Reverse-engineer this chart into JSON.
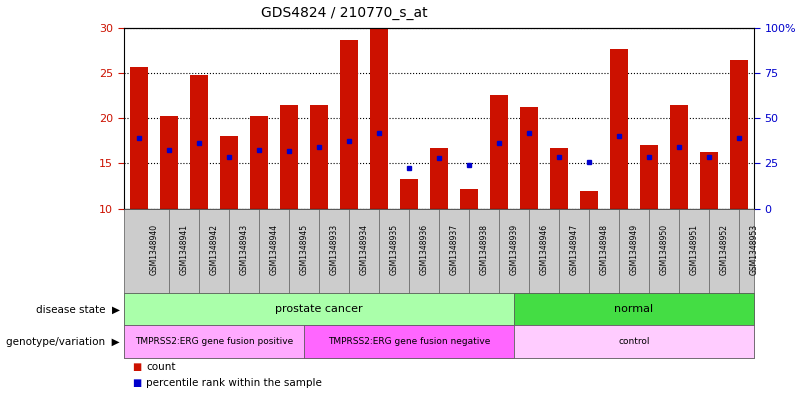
{
  "title": "GDS4824 / 210770_s_at",
  "samples": [
    "GSM1348940",
    "GSM1348941",
    "GSM1348942",
    "GSM1348943",
    "GSM1348944",
    "GSM1348945",
    "GSM1348933",
    "GSM1348934",
    "GSM1348935",
    "GSM1348936",
    "GSM1348937",
    "GSM1348938",
    "GSM1348939",
    "GSM1348946",
    "GSM1348947",
    "GSM1348948",
    "GSM1348949",
    "GSM1348950",
    "GSM1348951",
    "GSM1348952",
    "GSM1348953"
  ],
  "bar_heights": [
    25.6,
    20.2,
    24.8,
    18.0,
    20.2,
    21.5,
    21.5,
    28.6,
    29.8,
    13.3,
    16.7,
    12.2,
    22.5,
    21.2,
    16.7,
    12.0,
    27.6,
    17.0,
    21.5,
    16.3,
    26.4
  ],
  "blue_markers": [
    17.8,
    16.5,
    17.3,
    15.7,
    16.5,
    16.4,
    16.8,
    17.5,
    18.3,
    14.5,
    15.6,
    14.8,
    17.3,
    18.3,
    15.7,
    15.2,
    18.0,
    15.7,
    16.8,
    15.7,
    17.8
  ],
  "ylim": [
    10,
    30
  ],
  "yticks": [
    10,
    15,
    20,
    25,
    30
  ],
  "bar_color": "#cc1100",
  "marker_color": "#0000cc",
  "background_color": "#ffffff",
  "ax_bg_color": "#ffffff",
  "grid_color": "#000000",
  "disease_state_groups": [
    {
      "label": "prostate cancer",
      "start": 0,
      "end": 12,
      "color": "#aaffaa"
    },
    {
      "label": "normal",
      "start": 13,
      "end": 20,
      "color": "#44dd44"
    }
  ],
  "genotype_groups": [
    {
      "label": "TMPRSS2:ERG gene fusion positive",
      "start": 0,
      "end": 5,
      "color": "#ffaaff"
    },
    {
      "label": "TMPRSS2:ERG gene fusion negative",
      "start": 6,
      "end": 12,
      "color": "#ff66ff"
    },
    {
      "label": "control",
      "start": 13,
      "end": 20,
      "color": "#ffccff"
    }
  ],
  "legend_count_label": "count",
  "legend_percentile_label": "percentile rank within the sample",
  "disease_state_label": "disease state",
  "genotype_label": "genotype/variation",
  "label_bg_color": "#cccccc",
  "border_color": "#555555"
}
